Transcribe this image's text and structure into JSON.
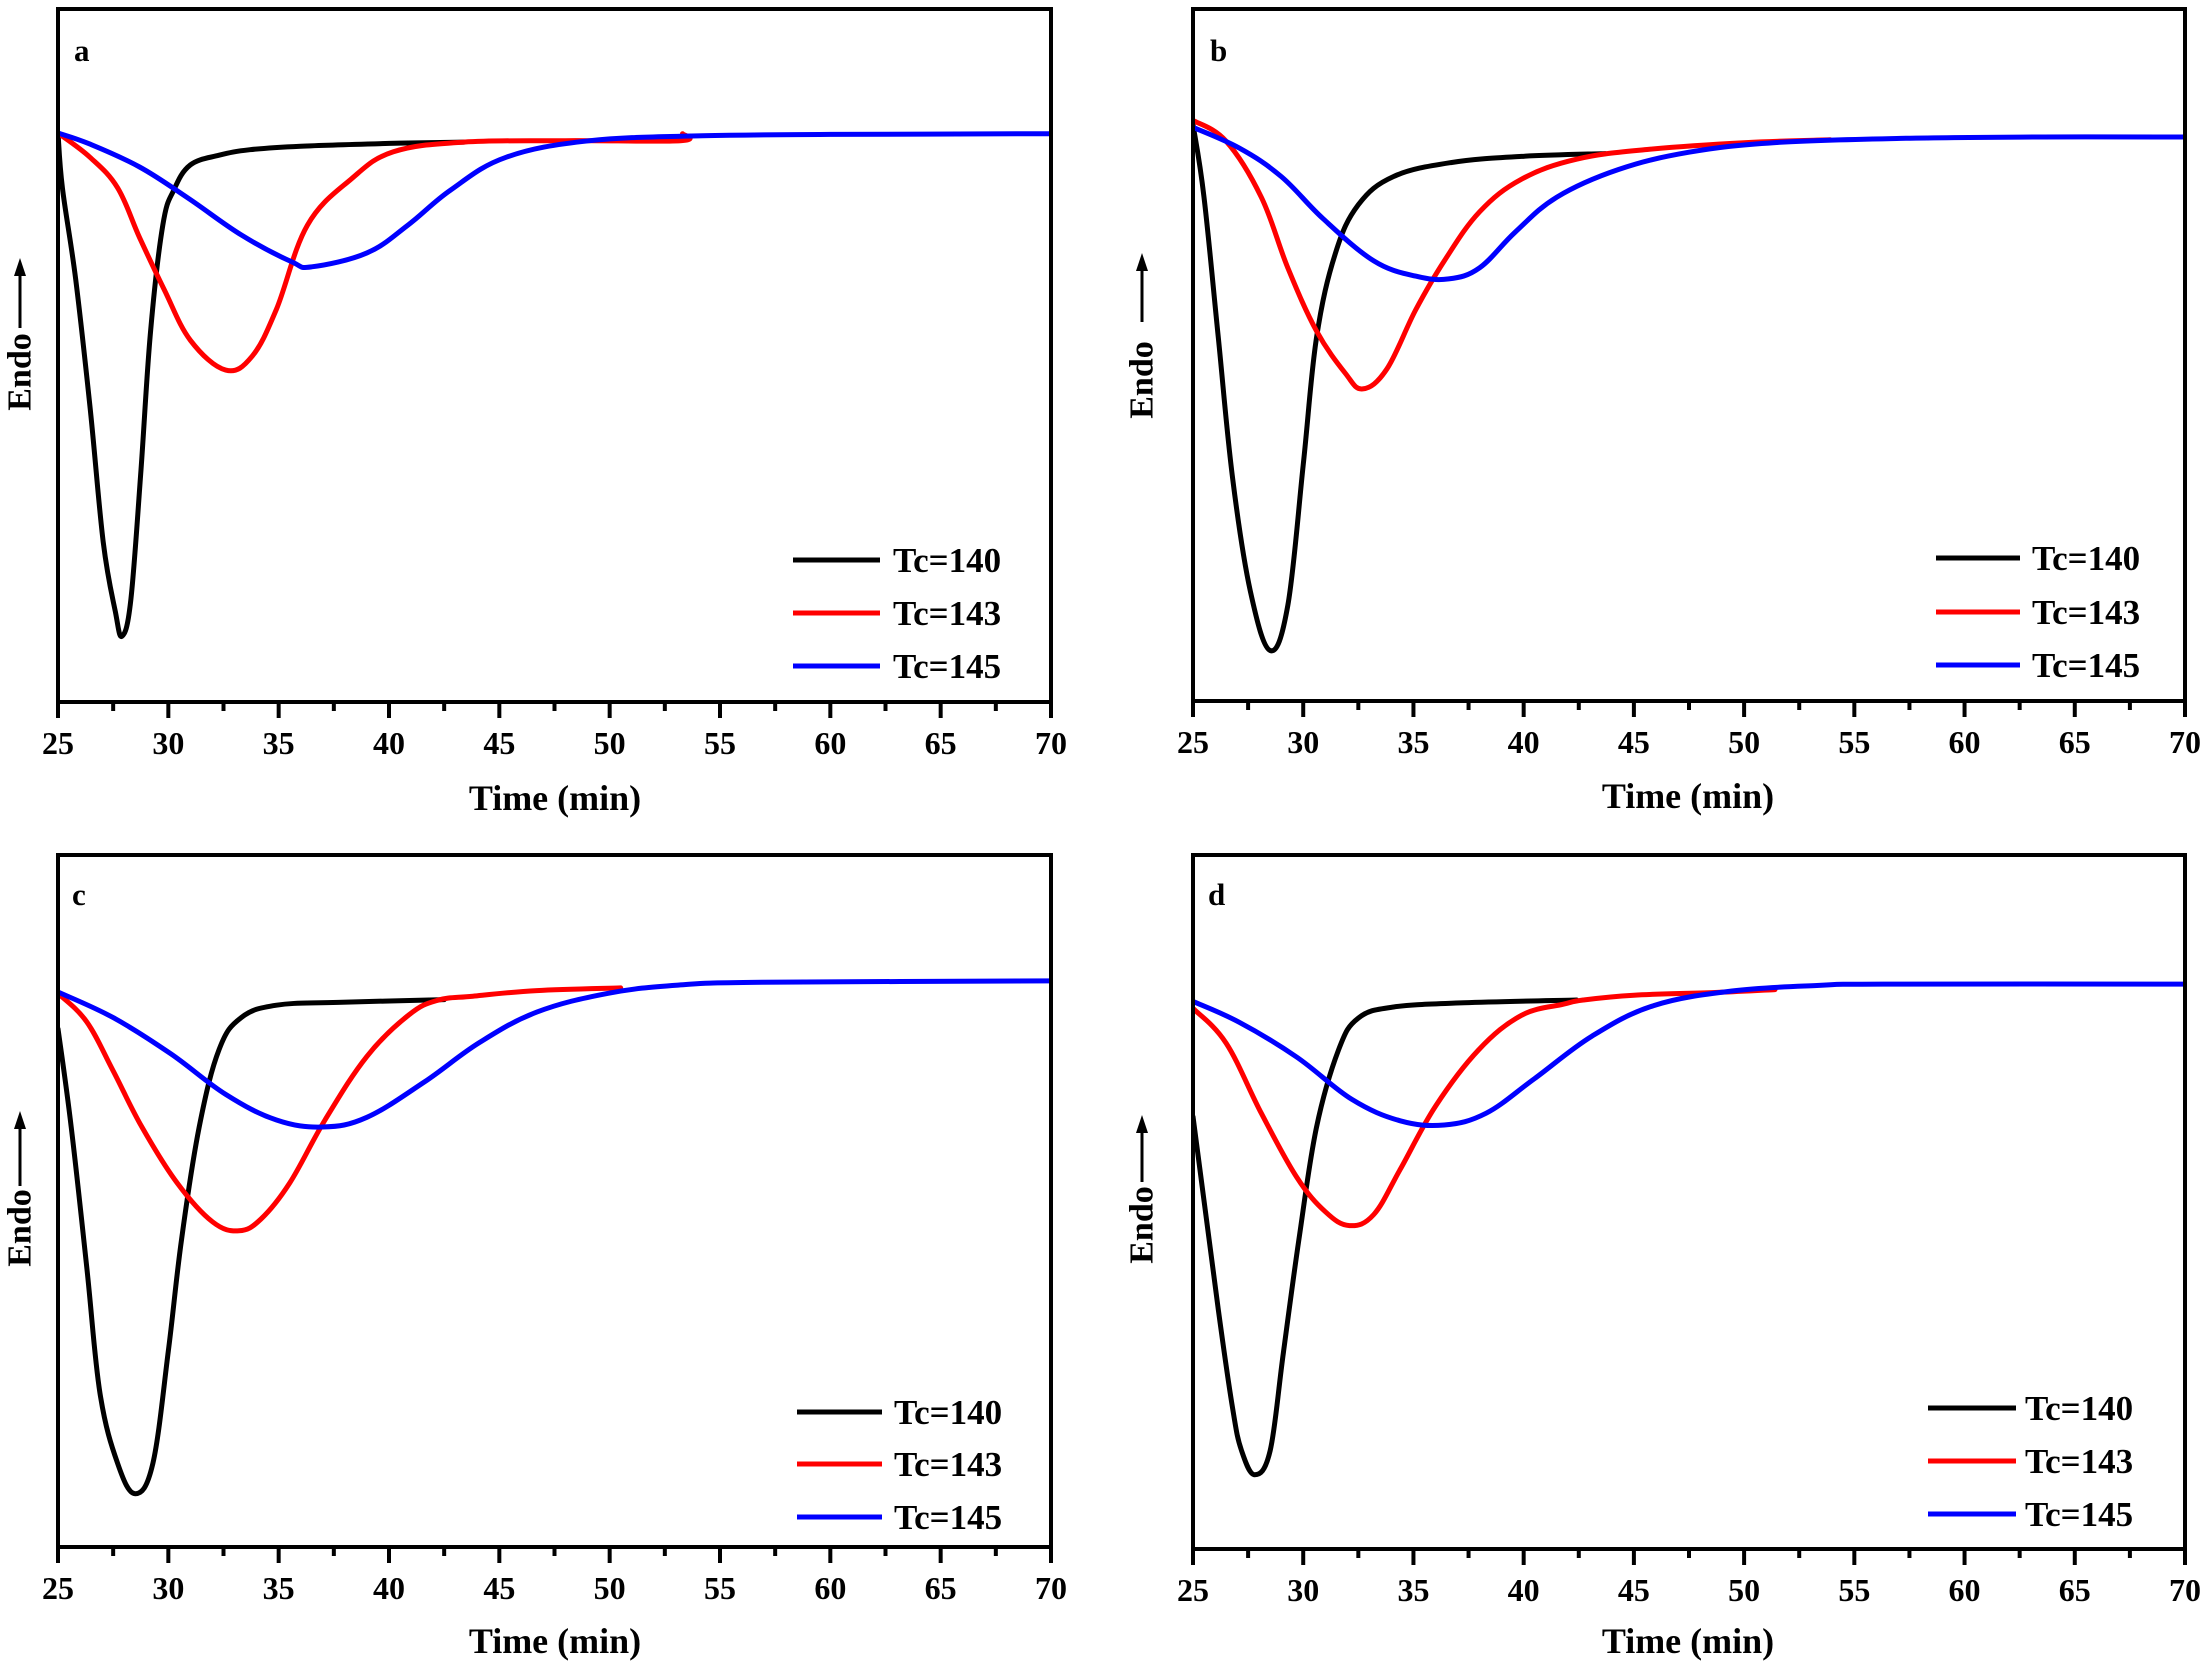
{
  "figure": {
    "description": "Isothermal crystallization DSC exotherms, four panels"
  },
  "chart_data": [
    {
      "type": "line",
      "panel_label": "a",
      "xlabel": "Time (min)",
      "ylabel": "Endo",
      "y_units": "relative heat flow (a.u.), 0 = bottom of axis, 100 = top of axis",
      "xlim": [
        25,
        70
      ],
      "ylim": [
        0,
        100
      ],
      "x_ticks": [
        25,
        30,
        35,
        40,
        45,
        50,
        55,
        60,
        65,
        70
      ],
      "x_tick_labels": [
        "25",
        "30",
        "35",
        "40",
        "45",
        "50",
        "55",
        "60",
        "65",
        "70"
      ],
      "grid": false,
      "legend_position": "bottom-right",
      "series": [
        {
          "name": "Tc=140",
          "color": "#000000",
          "x": [
            25.0,
            25.2,
            25.8,
            26.45,
            27.05,
            27.6,
            27.9,
            28.3,
            28.76,
            29.2,
            29.75,
            30.25,
            31.0,
            32.3,
            33.7,
            36.0,
            40.0,
            43.4
          ],
          "y": [
            82.1,
            74.2,
            61.0,
            42.6,
            23.1,
            13.0,
            9.5,
            14.7,
            33.5,
            53.7,
            68.8,
            73.9,
            77.5,
            78.9,
            79.7,
            80.2,
            80.6,
            80.8
          ]
        },
        {
          "name": "Tc=143",
          "color": "#ff0000",
          "x": [
            25.0,
            26.45,
            27.7,
            28.7,
            29.8,
            31.0,
            32.6,
            33.8,
            34.9,
            36.3,
            38.3,
            40.2,
            43.4,
            48.0,
            53.2,
            53.3
          ],
          "y": [
            82.1,
            78.6,
            74.2,
            67.0,
            59.6,
            52.2,
            47.9,
            49.9,
            56.7,
            68.8,
            75.5,
            79.4,
            80.8,
            81.0,
            81.0,
            82.0
          ]
        },
        {
          "name": "Tc=145",
          "color": "#0000ff",
          "x": [
            25.0,
            26.45,
            28.7,
            30.9,
            33.3,
            35.6,
            36.5,
            39.0,
            40.85,
            42.8,
            45.3,
            49.1,
            54.2,
            60.0,
            70.0
          ],
          "y": [
            82.1,
            80.5,
            77.2,
            72.7,
            67.4,
            63.5,
            62.8,
            64.8,
            68.8,
            73.9,
            78.6,
            81.0,
            81.7,
            81.9,
            82.0
          ]
        }
      ]
    },
    {
      "type": "line",
      "panel_label": "b",
      "xlabel": "Time (min)",
      "ylabel": "Endo",
      "y_units": "relative heat flow (a.u.), 0 = bottom of axis, 100 = top of axis",
      "xlim": [
        25,
        70
      ],
      "ylim": [
        0,
        100
      ],
      "x_ticks": [
        25,
        30,
        35,
        40,
        45,
        50,
        55,
        60,
        65,
        70
      ],
      "x_tick_labels": [
        "25",
        "30",
        "35",
        "40",
        "45",
        "50",
        "55",
        "60",
        "65",
        "70"
      ],
      "grid": false,
      "legend_position": "bottom-right",
      "series": [
        {
          "name": "Tc=140",
          "color": "#000000",
          "x": [
            25.0,
            25.5,
            26.15,
            26.8,
            27.6,
            28.5,
            29.3,
            30.0,
            30.6,
            31.45,
            32.5,
            34.1,
            36.7,
            39.9,
            43.7
          ],
          "y": [
            83.3,
            72.8,
            52.4,
            32.1,
            15.9,
            7.3,
            13.8,
            34.1,
            52.4,
            64.6,
            71.7,
            75.8,
            77.8,
            78.7,
            79.1
          ]
        },
        {
          "name": "Tc=143",
          "color": "#ff0000",
          "x": [
            25.0,
            26.5,
            28.1,
            29.3,
            30.6,
            31.9,
            32.7,
            33.8,
            35.1,
            36.4,
            38.0,
            39.9,
            42.4,
            45.6,
            50.1,
            53.9
          ],
          "y": [
            83.9,
            80.9,
            72.8,
            62.6,
            53.5,
            47.4,
            45.1,
            48.0,
            56.5,
            63.6,
            70.7,
            75.4,
            78.3,
            79.7,
            80.7,
            81.1
          ]
        },
        {
          "name": "Tc=145",
          "color": "#0000ff",
          "x": [
            25.0,
            27.1,
            29.0,
            30.9,
            33.2,
            35.1,
            36.6,
            38.0,
            39.6,
            41.5,
            44.3,
            47.5,
            51.4,
            57.1,
            63.5,
            70.0
          ],
          "y": [
            82.9,
            79.9,
            75.8,
            69.7,
            63.6,
            61.4,
            61.0,
            62.6,
            67.7,
            72.8,
            76.8,
            79.3,
            80.7,
            81.3,
            81.5,
            81.5
          ]
        }
      ]
    },
    {
      "type": "line",
      "panel_label": "c",
      "xlabel": "Time (min)",
      "ylabel": "Endo",
      "y_units": "relative heat flow (a.u.), 0 = bottom of axis, 100 = top of axis",
      "xlim": [
        25,
        70
      ],
      "ylim": [
        0,
        100
      ],
      "x_ticks": [
        25,
        30,
        35,
        40,
        45,
        50,
        55,
        60,
        65,
        70
      ],
      "x_tick_labels": [
        "25",
        "30",
        "35",
        "40",
        "45",
        "50",
        "55",
        "60",
        "65",
        "70"
      ],
      "grid": false,
      "legend_position": "bottom-right",
      "series": [
        {
          "name": "Tc=140",
          "color": "#000000",
          "x": [
            25.0,
            25.6,
            26.3,
            26.9,
            27.7,
            28.5,
            29.3,
            30.0,
            30.6,
            31.4,
            32.3,
            33.3,
            34.9,
            37.7,
            42.5
          ],
          "y": [
            74.9,
            60.7,
            40.5,
            22.3,
            12.1,
            7.7,
            12.1,
            28.3,
            44.5,
            60.7,
            71.9,
            76.5,
            78.3,
            78.7,
            79.1
          ]
        },
        {
          "name": "Tc=143",
          "color": "#ff0000",
          "x": [
            25.0,
            26.3,
            27.5,
            28.8,
            30.4,
            32.0,
            33.2,
            34.2,
            35.5,
            37.1,
            39.0,
            40.9,
            42.2,
            43.8,
            46.7,
            50.5
          ],
          "y": [
            80.0,
            75.9,
            68.8,
            60.7,
            52.6,
            47.0,
            45.7,
            47.4,
            52.6,
            61.7,
            70.9,
            76.9,
            79.0,
            79.6,
            80.4,
            80.8
          ]
        },
        {
          "name": "Tc=145",
          "color": "#0000ff",
          "x": [
            25.0,
            27.5,
            30.1,
            32.6,
            34.9,
            37.0,
            39.0,
            41.6,
            44.1,
            46.7,
            49.9,
            53.1,
            56.9,
            70.0
          ],
          "y": [
            80.2,
            76.5,
            71.3,
            65.4,
            61.7,
            60.7,
            62.1,
            67.2,
            72.9,
            77.3,
            80.0,
            81.2,
            81.6,
            81.8
          ]
        }
      ]
    },
    {
      "type": "line",
      "panel_label": "d",
      "xlabel": "Time (min)",
      "ylabel": "Endo",
      "y_units": "relative heat flow (a.u.), 0 = bottom of axis, 100 = top of axis",
      "xlim": [
        25,
        70
      ],
      "ylim": [
        0,
        100
      ],
      "x_ticks": [
        25,
        30,
        35,
        40,
        45,
        50,
        55,
        60,
        65,
        70
      ],
      "x_tick_labels": [
        "25",
        "30",
        "35",
        "40",
        "45",
        "50",
        "55",
        "60",
        "65",
        "70"
      ],
      "grid": false,
      "legend_position": "bottom-right",
      "series": [
        {
          "name": "Tc=140",
          "color": "#000000",
          "x": [
            25.0,
            25.5,
            26.15,
            26.8,
            27.2,
            27.8,
            28.5,
            29.1,
            29.8,
            30.6,
            31.6,
            32.5,
            34.1,
            37.3,
            42.4
          ],
          "y": [
            62.3,
            50.2,
            34.4,
            20.2,
            14.2,
            10.7,
            14.2,
            28.3,
            44.5,
            60.7,
            71.9,
            76.5,
            78.1,
            78.7,
            79.1
          ]
        },
        {
          "name": "Tc=143",
          "color": "#ff0000",
          "x": [
            25.0,
            26.5,
            28.1,
            29.7,
            31.0,
            32.1,
            33.2,
            34.4,
            36.0,
            37.95,
            39.9,
            41.8,
            42.7,
            45.0,
            48.8,
            51.4
          ],
          "y": [
            77.9,
            72.9,
            62.8,
            53.6,
            48.6,
            46.6,
            48.2,
            54.7,
            63.8,
            71.9,
            76.9,
            78.5,
            79.1,
            79.8,
            80.2,
            80.6
          ]
        },
        {
          "name": "Tc=145",
          "color": "#0000ff",
          "x": [
            25.0,
            27.1,
            29.7,
            32.2,
            34.4,
            36.4,
            38.3,
            40.5,
            43.1,
            45.9,
            49.45,
            53.3,
            56.5,
            70.0
          ],
          "y": [
            78.9,
            75.9,
            70.9,
            64.8,
            61.7,
            61.1,
            62.8,
            67.8,
            73.9,
            78.3,
            80.4,
            81.2,
            81.4,
            81.4
          ]
        }
      ]
    }
  ]
}
